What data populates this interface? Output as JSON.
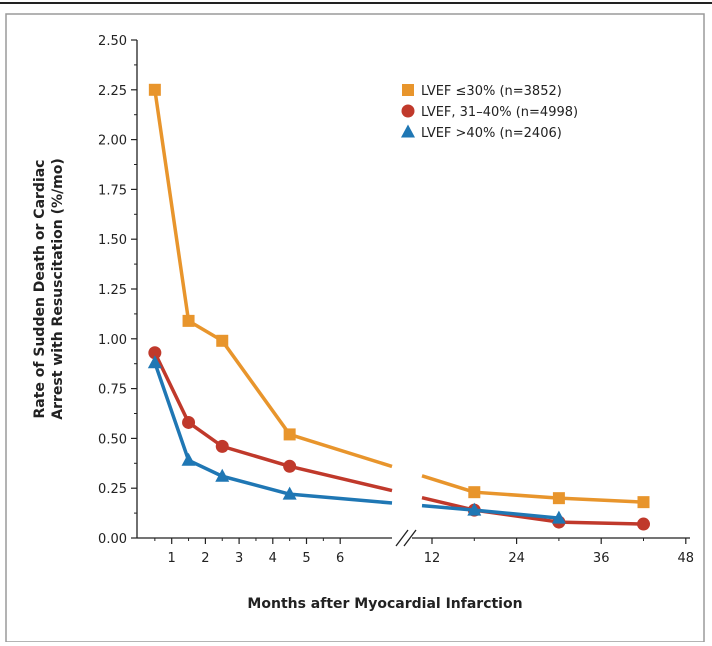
{
  "chart_data": {
    "type": "line",
    "title": "",
    "xlabel": "Months after Myocardial Infarction",
    "ylabel_lines": [
      "Rate of Sudden Death or Cardiac",
      "Arrest with Resuscitation (%/mo)"
    ],
    "ylim": [
      0,
      2.5
    ],
    "y_ticks": [
      "0.00",
      "0.25",
      "0.50",
      "0.75",
      "1.00",
      "1.25",
      "1.50",
      "1.75",
      "2.00",
      "2.25",
      "2.50"
    ],
    "x_tick_labels": [
      "1",
      "2",
      "3",
      "4",
      "5",
      "6",
      "12",
      "24",
      "36",
      "48"
    ],
    "x_axis_break": "between 6 and 12 months",
    "legend_position": "top-right",
    "grid": false,
    "series": [
      {
        "name": "LVEF ≤30% (n=3852)",
        "marker": "square",
        "color": "#e8952c",
        "points": [
          [
            0.5,
            2.25
          ],
          [
            1.5,
            1.09
          ],
          [
            2.5,
            0.99
          ],
          [
            4.5,
            0.52
          ],
          [
            18,
            0.23
          ],
          [
            30,
            0.2
          ],
          [
            42,
            0.18
          ]
        ]
      },
      {
        "name": "LVEF, 31–40% (n=4998)",
        "marker": "circle",
        "color": "#c0392b",
        "points": [
          [
            0.5,
            0.93
          ],
          [
            1.5,
            0.58
          ],
          [
            2.5,
            0.46
          ],
          [
            4.5,
            0.36
          ],
          [
            18,
            0.14
          ],
          [
            30,
            0.08
          ],
          [
            42,
            0.07
          ]
        ]
      },
      {
        "name": "LVEF >40% (n=2406)",
        "marker": "triangle",
        "color": "#1f77b4",
        "points": [
          [
            0.5,
            0.88
          ],
          [
            1.5,
            0.39
          ],
          [
            2.5,
            0.31
          ],
          [
            4.5,
            0.22
          ],
          [
            18,
            0.14
          ],
          [
            30,
            0.1
          ]
        ]
      }
    ]
  },
  "colors": {
    "frame_border": "#9a9a9a",
    "top_rule": "#222222",
    "axis": "#222222"
  }
}
